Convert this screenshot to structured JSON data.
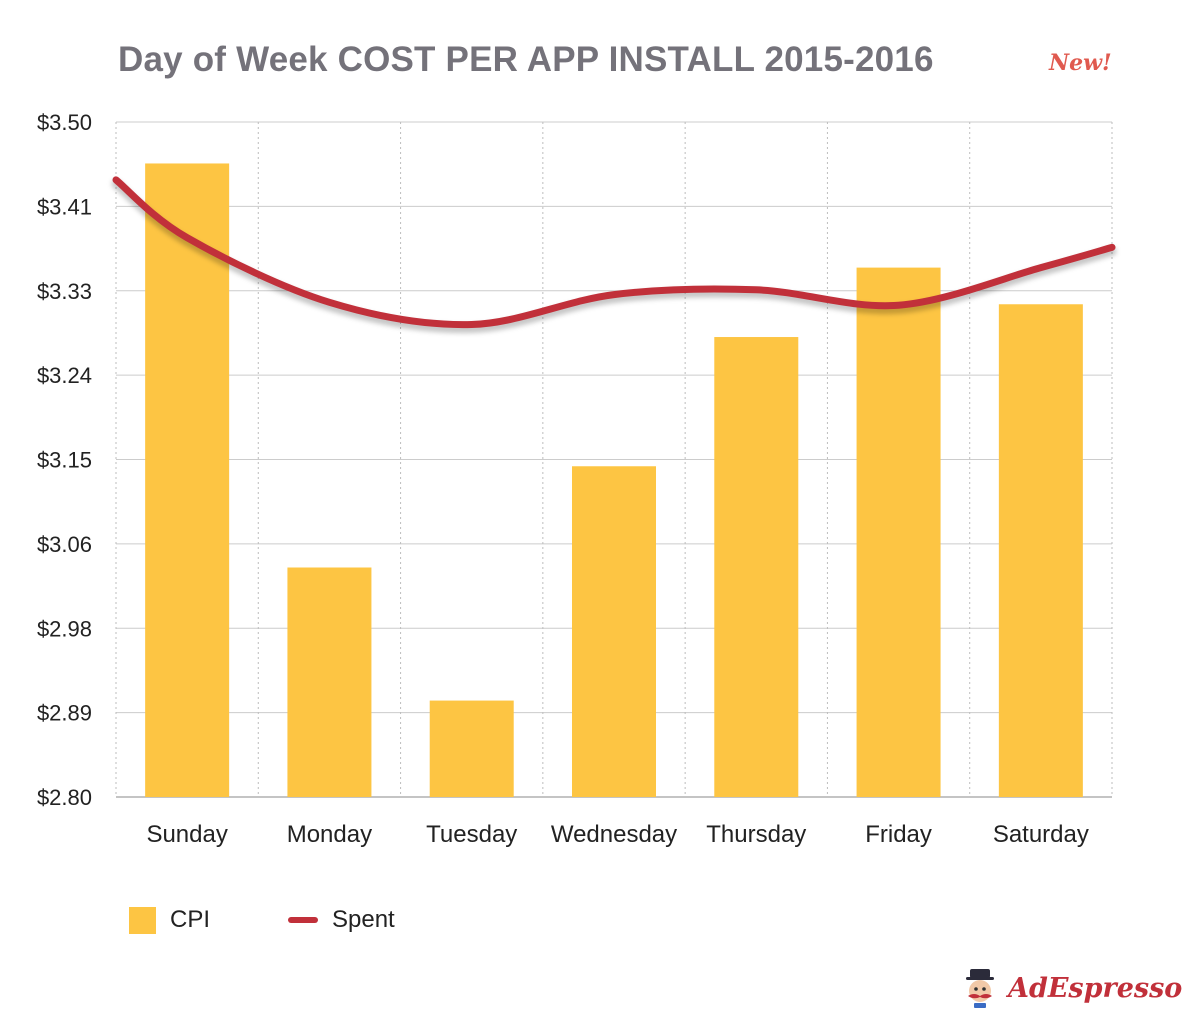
{
  "title": "Day of Week COST PER APP INSTALL 2015-2016",
  "badge": "New!",
  "brand": "AdEspresso",
  "colors": {
    "bar": "#fdc543",
    "line": "#c1303a",
    "title": "#74727a",
    "grid": "#cccccc"
  },
  "chart_data": {
    "type": "bar",
    "title": "Day of Week COST PER APP INSTALL 2015-2016",
    "categories": [
      "Sunday",
      "Monday",
      "Tuesday",
      "Wednesday",
      "Thursday",
      "Friday",
      "Saturday"
    ],
    "y_ticks": [
      "$2.80",
      "$2.89",
      "$2.98",
      "$3.06",
      "$3.15",
      "$3.24",
      "$3.33",
      "$3.41",
      "$3.50"
    ],
    "ylim": [
      2.8,
      3.5
    ],
    "series": [
      {
        "name": "CPI",
        "type": "bar",
        "values": [
          3.457,
          3.038,
          2.9,
          3.143,
          3.277,
          3.349,
          3.311
        ]
      },
      {
        "name": "Spent",
        "type": "line",
        "values": [
          3.38,
          3.313,
          3.29,
          3.321,
          3.326,
          3.31,
          3.349
        ]
      }
    ],
    "line_endpoints": {
      "start": 3.44,
      "end": 3.37
    },
    "legend": [
      "CPI",
      "Spent"
    ],
    "legend_position": "bottom-left",
    "grid": true
  }
}
